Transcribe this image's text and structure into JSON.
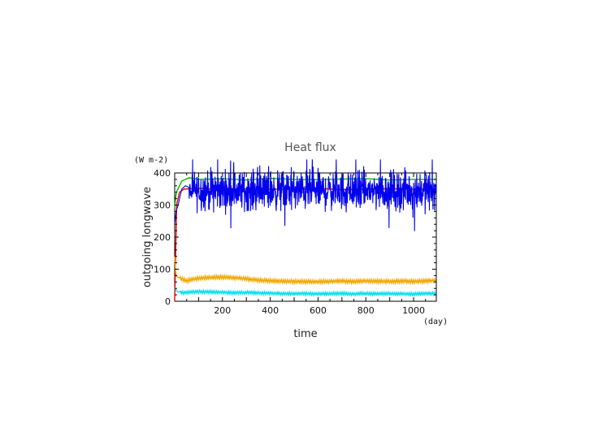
{
  "chart_data": {
    "type": "line",
    "title": "Heat flux",
    "xlabel": "time",
    "ylabel": "outgoing longwave",
    "x_unit": "(day)",
    "y_unit": "(W m-2)",
    "xlim": [
      0,
      1095
    ],
    "ylim": [
      0,
      400
    ],
    "x_ticks": [
      200,
      400,
      600,
      800,
      1000
    ],
    "y_ticks": [
      0,
      100,
      200,
      300,
      400
    ],
    "grid": false,
    "colors": {
      "total": "#0000ee",
      "green": "#00bb00",
      "red": "#ee0000",
      "orange": "#f0a800",
      "cyan": "#00e0ee"
    },
    "series": [
      {
        "color": "green",
        "x": [
          0,
          5,
          10,
          20,
          30,
          60,
          100,
          200,
          300,
          400,
          500,
          600,
          700,
          800,
          900,
          1000,
          1095
        ],
        "values": [
          290,
          330,
          345,
          360,
          375,
          385,
          380,
          382,
          378,
          383,
          380,
          379,
          381,
          382,
          378,
          380,
          380
        ]
      },
      {
        "color": "red",
        "x": [
          0,
          3,
          8,
          20,
          40,
          100,
          200,
          300,
          400,
          500,
          600,
          700,
          800,
          900,
          1000,
          1095
        ],
        "values": [
          0,
          120,
          300,
          340,
          350,
          352,
          348,
          351,
          349,
          350,
          352,
          348,
          350,
          351,
          349,
          350
        ]
      },
      {
        "color": "orange",
        "x": [
          0,
          5,
          20,
          50,
          100,
          150,
          200,
          250,
          300,
          350,
          400,
          450,
          500,
          550,
          600,
          650,
          700,
          750,
          800,
          850,
          900,
          950,
          1000,
          1050,
          1095
        ],
        "values": [
          140,
          80,
          72,
          64,
          72,
          74,
          75,
          73,
          70,
          66,
          64,
          63,
          62,
          61,
          61,
          62,
          63,
          62,
          63,
          62,
          62,
          63,
          62,
          63,
          65
        ],
        "amplitude": 6
      },
      {
        "color": "cyan",
        "x": [
          0,
          10,
          30,
          60,
          100,
          150,
          200,
          250,
          300,
          350,
          400,
          450,
          500,
          550,
          600,
          650,
          700,
          750,
          800,
          850,
          900,
          950,
          1000,
          1050,
          1095
        ],
        "values": [
          42,
          30,
          27,
          28,
          30,
          29,
          28,
          26,
          27,
          26,
          25,
          24,
          24,
          24,
          23,
          24,
          24,
          23,
          24,
          23,
          24,
          23,
          23,
          24,
          24
        ],
        "amplitude": 5
      },
      {
        "color": "total",
        "x": [
          0,
          3,
          6,
          10,
          15,
          20,
          30,
          45,
          60
        ],
        "values": [
          240,
          260,
          280,
          290,
          300,
          320,
          350,
          360,
          355
        ],
        "noise": {
          "mean": 345,
          "spread": 45,
          "min": 185,
          "max": 442,
          "from_day": 60
        }
      }
    ]
  }
}
